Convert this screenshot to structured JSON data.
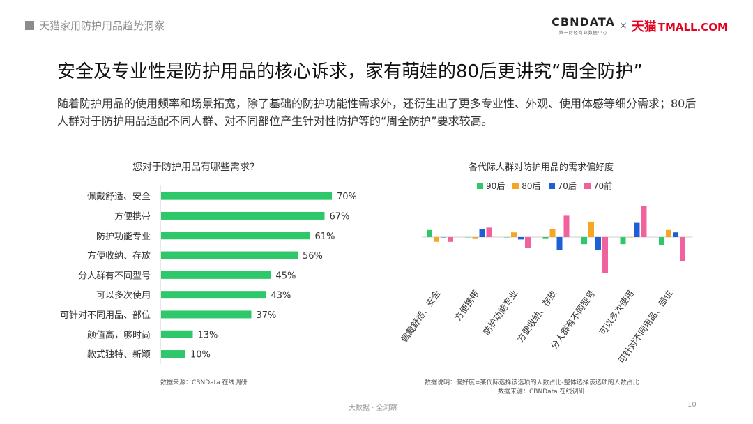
{
  "header": {
    "section": "天猫家用防护用品趋势洞察",
    "logo_cbn": "CBNDATA",
    "logo_cbn_sub": "第一财经商业数据中心",
    "logo_sep": "×",
    "logo_tmall_cn": "天猫",
    "logo_tmall_en": "TMALL.COM"
  },
  "headline": "安全及专业性是防护用品的核心诉求，家有萌娃的80后更讲究“周全防护”",
  "description": "随着防护用品的使用频率和场景拓宽，除了基础的防护功能性需求外，还衍生出了更多专业性、外观、使用体感等细分需求；80后人群对于防护用品适配不同人群、对不同部位产生针对性防护等的“周全防护”要求较高。",
  "colors": {
    "bar": "#2ec76a",
    "s90": "#2ec76a",
    "s80": "#f5a623",
    "s70": "#1f5fd6",
    "s70pre": "#f0619e",
    "axis": "#cfcfcf"
  },
  "left_source": "数据来源：CBNData 在线调研",
  "right_note": "数据说明：偏好度=某代际选择该选项的人数占比-整体选择该选项的人数占比",
  "right_source": "数据来源：CBNData 在线调研",
  "footer": "大数据 · 全洞察",
  "page_number": "10",
  "chart_data": [
    {
      "type": "bar",
      "orientation": "horizontal",
      "title": "您对于防护用品有哪些需求?",
      "categories": [
        "佩戴舒适、安全",
        "方便携带",
        "防护功能专业",
        "方便收纳、存放",
        "分人群有不同型号",
        "可以多次使用",
        "可针对不同用品、部位",
        "颜值高，够时尚",
        "款式独特、新颖"
      ],
      "values": [
        70,
        67,
        61,
        56,
        45,
        43,
        37,
        13,
        10
      ],
      "value_labels": [
        "70%",
        "67%",
        "61%",
        "56%",
        "45%",
        "43%",
        "37%",
        "13%",
        "10%"
      ],
      "value_unit": "%"
    },
    {
      "type": "bar",
      "title": "各代际人群对防护用品的需求偏好度",
      "categories": [
        "佩戴舒适、安全",
        "方便携带",
        "防护功能专业",
        "方便收纳、存放",
        "分人群有不同型号",
        "可以多次使用",
        "可针对不同用品、部位"
      ],
      "series": [
        {
          "name": "90后",
          "values": [
            3,
            0,
            0,
            -0.5,
            -3,
            -3,
            -3.5
          ]
        },
        {
          "name": "80后",
          "values": [
            -2,
            -0.5,
            2,
            3.5,
            6.5,
            0,
            3
          ]
        },
        {
          "name": "70后",
          "values": [
            0,
            3.5,
            -1,
            -5.5,
            -5.5,
            6,
            2
          ]
        },
        {
          "name": "70前",
          "values": [
            -2,
            4,
            -4.5,
            9,
            -15,
            13,
            -10
          ]
        }
      ],
      "legend_position": "top"
    }
  ]
}
